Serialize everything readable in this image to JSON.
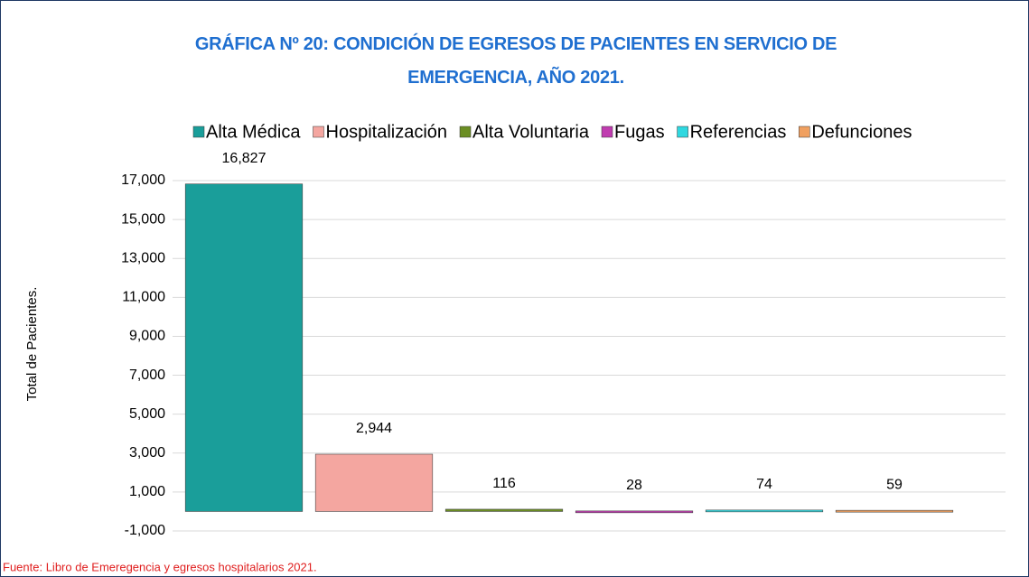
{
  "chart_data": {
    "type": "bar",
    "title": "GRÁFICA Nº 20: CONDICIÓN DE EGRESOS DE PACIENTES EN SERVICIO DE EMERGENCIA, AÑO 2021.",
    "y_label": "Total de Pacientes.",
    "source": "Fuente: Libro de Emeregencia y egresos hospitalarios 2021.",
    "legend": "top",
    "grid": true,
    "ylim": [
      -1000,
      17000
    ],
    "yticks": [
      {
        "value": -1000,
        "label": "-1,000"
      },
      {
        "value": 1000,
        "label": "1,000"
      },
      {
        "value": 3000,
        "label": "3,000"
      },
      {
        "value": 5000,
        "label": "5,000"
      },
      {
        "value": 7000,
        "label": "7,000"
      },
      {
        "value": 9000,
        "label": "9,000"
      },
      {
        "value": 11000,
        "label": "11,000"
      },
      {
        "value": 13000,
        "label": "13,000"
      },
      {
        "value": 15000,
        "label": "15,000"
      },
      {
        "value": 17000,
        "label": "17,000"
      }
    ],
    "series": [
      {
        "name": "Alta Médica",
        "color": "#1a9e9a",
        "values": [
          16827
        ],
        "value_labels": [
          "16,827"
        ]
      },
      {
        "name": "Hospitalización",
        "color": "#f4a6a0",
        "values": [
          2944
        ],
        "value_labels": [
          "2,944"
        ]
      },
      {
        "name": "Alta Voluntaria",
        "color": "#6b8e23",
        "values": [
          116
        ]
      },
      {
        "name": "Fugas",
        "color": "#c03cb0",
        "values": [
          28
        ]
      },
      {
        "name": "Referencias",
        "color": "#2fd8e0",
        "values": [
          74
        ]
      },
      {
        "name": "Defunciones",
        "color": "#f0a060",
        "values": [
          59
        ]
      }
    ]
  }
}
